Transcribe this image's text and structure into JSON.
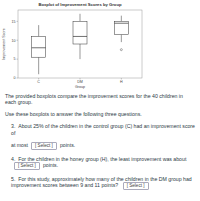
{
  "chart_data": {
    "type": "boxplot",
    "title": "Boxplot of Improvement Scores by Group",
    "x_label": "Group",
    "y_label": "Improvement Score",
    "categories": [
      "C",
      "DM",
      "H"
    ],
    "min": [
      1,
      5,
      9.5
    ],
    "q1": [
      5.5,
      9,
      11.5
    ],
    "median": [
      8,
      11,
      14.5
    ],
    "q3": [
      11,
      15,
      15
    ],
    "max": [
      14,
      17,
      16.5
    ],
    "outliers": [
      [],
      [],
      [
        7.5
      ]
    ],
    "ylim": [
      0,
      18
    ],
    "yticks": [
      0,
      5,
      10,
      15
    ],
    "color": "#ffffff"
  },
  "intro": [
    "The provided boxplots compare the improvement scores for the 40 children in each group.",
    "Use these boxplots to answer the following three questions."
  ],
  "questions": [
    {
      "number": "3.",
      "before": "About 25% of the children in the control group (C) had an improvement score of",
      "select": "[ Select ]",
      "after": "points.",
      "prefix": "at most"
    },
    {
      "number": "4.",
      "before": "For the children in the honey group (H), the least improvement was about",
      "select": "[ Select ]",
      "after": "points.",
      "prefix": ""
    },
    {
      "number": "5.",
      "before": "For this study, approximately how many of the children in the DM group had improvement scores between 9 and 11 points?",
      "select": "[ Select ]",
      "after": "",
      "prefix": ""
    }
  ]
}
